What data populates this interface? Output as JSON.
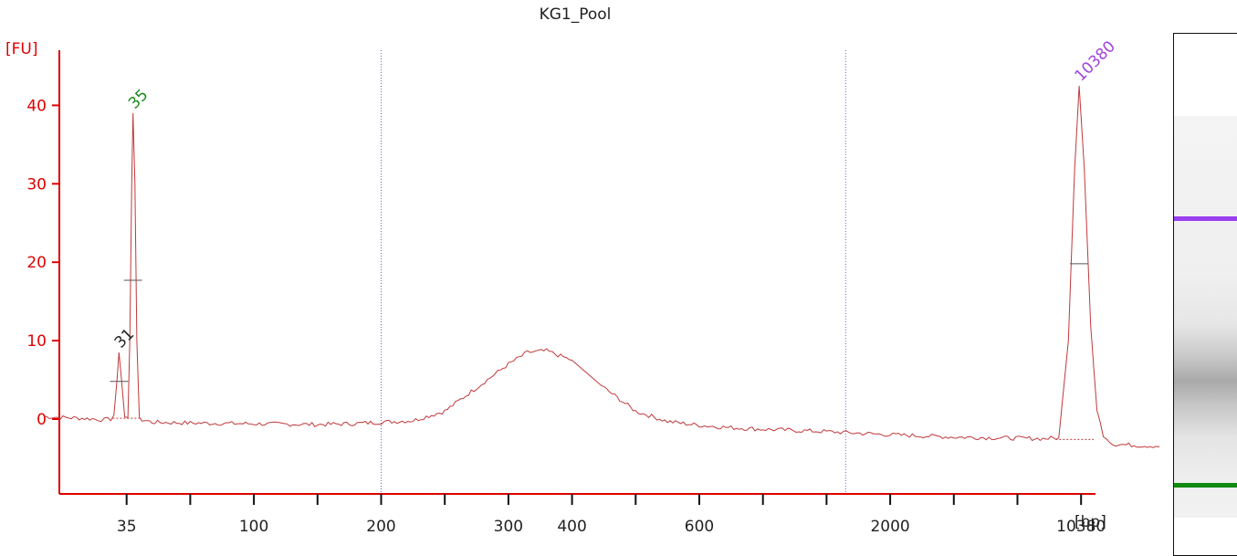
{
  "chart_data": {
    "type": "line",
    "title": "KG1_Pool",
    "ylabel": "[FU]",
    "xlabel": "[bp]",
    "ylim": [
      -9,
      48
    ],
    "yticks": [
      0,
      10,
      20,
      30,
      40
    ],
    "xticks": [
      {
        "label": "35",
        "index": 1
      },
      {
        "label": "",
        "index": 2
      },
      {
        "label": "100",
        "index": 3
      },
      {
        "label": "",
        "index": 4
      },
      {
        "label": "200",
        "index": 5
      },
      {
        "label": "",
        "index": 6
      },
      {
        "label": "300",
        "index": 7
      },
      {
        "label": "400",
        "index": 8
      },
      {
        "label": "",
        "index": 9
      },
      {
        "label": "600",
        "index": 10
      },
      {
        "label": "",
        "index": 11
      },
      {
        "label": "",
        "index": 12
      },
      {
        "label": "2000",
        "index": 13
      },
      {
        "label": "",
        "index": 14
      },
      {
        "label": "",
        "index": 15
      },
      {
        "label": "10380",
        "index": 16
      }
    ],
    "region_markers": [
      5,
      12.3
    ],
    "trace_color": "#c0393b",
    "series": [
      {
        "values": [
          [
            -0.3,
            0.3
          ],
          [
            0.0,
            0.2
          ],
          [
            0.3,
            0.1
          ],
          [
            0.5,
            0.0
          ],
          [
            0.65,
            -0.1
          ],
          [
            0.75,
            0.0
          ],
          [
            0.8,
            0.5
          ],
          [
            0.85,
            5.0
          ],
          [
            0.88,
            8.5
          ],
          [
            0.92,
            5.0
          ],
          [
            0.97,
            0.3
          ],
          [
            1.02,
            0.2
          ],
          [
            1.05,
            10.0
          ],
          [
            1.08,
            30.0
          ],
          [
            1.1,
            39.0
          ],
          [
            1.13,
            30.0
          ],
          [
            1.16,
            10.0
          ],
          [
            1.2,
            0.0
          ],
          [
            1.4,
            -0.4
          ],
          [
            2.0,
            -0.5
          ],
          [
            3.0,
            -0.6
          ],
          [
            4.0,
            -0.7
          ],
          [
            4.5,
            -0.6
          ],
          [
            5.0,
            -0.4
          ],
          [
            5.5,
            -0.2
          ],
          [
            6.0,
            1.0
          ],
          [
            6.5,
            4.0
          ],
          [
            7.0,
            7.0
          ],
          [
            7.3,
            8.5
          ],
          [
            7.6,
            8.7
          ],
          [
            8.0,
            7.5
          ],
          [
            8.5,
            4.0
          ],
          [
            9.0,
            1.0
          ],
          [
            9.5,
            -0.3
          ],
          [
            10.0,
            -0.8
          ],
          [
            10.5,
            -1.1
          ],
          [
            11.0,
            -1.3
          ],
          [
            12.0,
            -1.6
          ],
          [
            13.0,
            -2.0
          ],
          [
            14.0,
            -2.3
          ],
          [
            15.4,
            -2.5
          ],
          [
            15.65,
            -2.4
          ],
          [
            15.8,
            10.0
          ],
          [
            15.9,
            32.0
          ],
          [
            15.97,
            42.5
          ],
          [
            16.05,
            32.0
          ],
          [
            16.15,
            12.0
          ],
          [
            16.25,
            1.0
          ],
          [
            16.35,
            -2.0
          ],
          [
            16.5,
            -3.2
          ],
          [
            17.0,
            -3.4
          ],
          [
            18.0,
            -3.6
          ],
          [
            20.0,
            -4.0
          ],
          [
            22.0,
            -4.3
          ],
          [
            25.3,
            -4.6
          ]
        ]
      }
    ],
    "peaks": [
      {
        "label": "35",
        "index": 1.1,
        "value": 39.0,
        "color": "#1a8a1a",
        "half": 17.7
      },
      {
        "label": "31",
        "index": 0.88,
        "value": 8.5,
        "color": "#222222",
        "half": 4.8
      },
      {
        "label": "10380",
        "index": 15.97,
        "value": 42.5,
        "color": "#a044e0",
        "half": 19.8
      }
    ],
    "gel_bands": [
      {
        "label": "upper marker",
        "color": "#9a3ff0"
      },
      {
        "label": "lower marker",
        "color": "#0f8a0f"
      }
    ]
  }
}
